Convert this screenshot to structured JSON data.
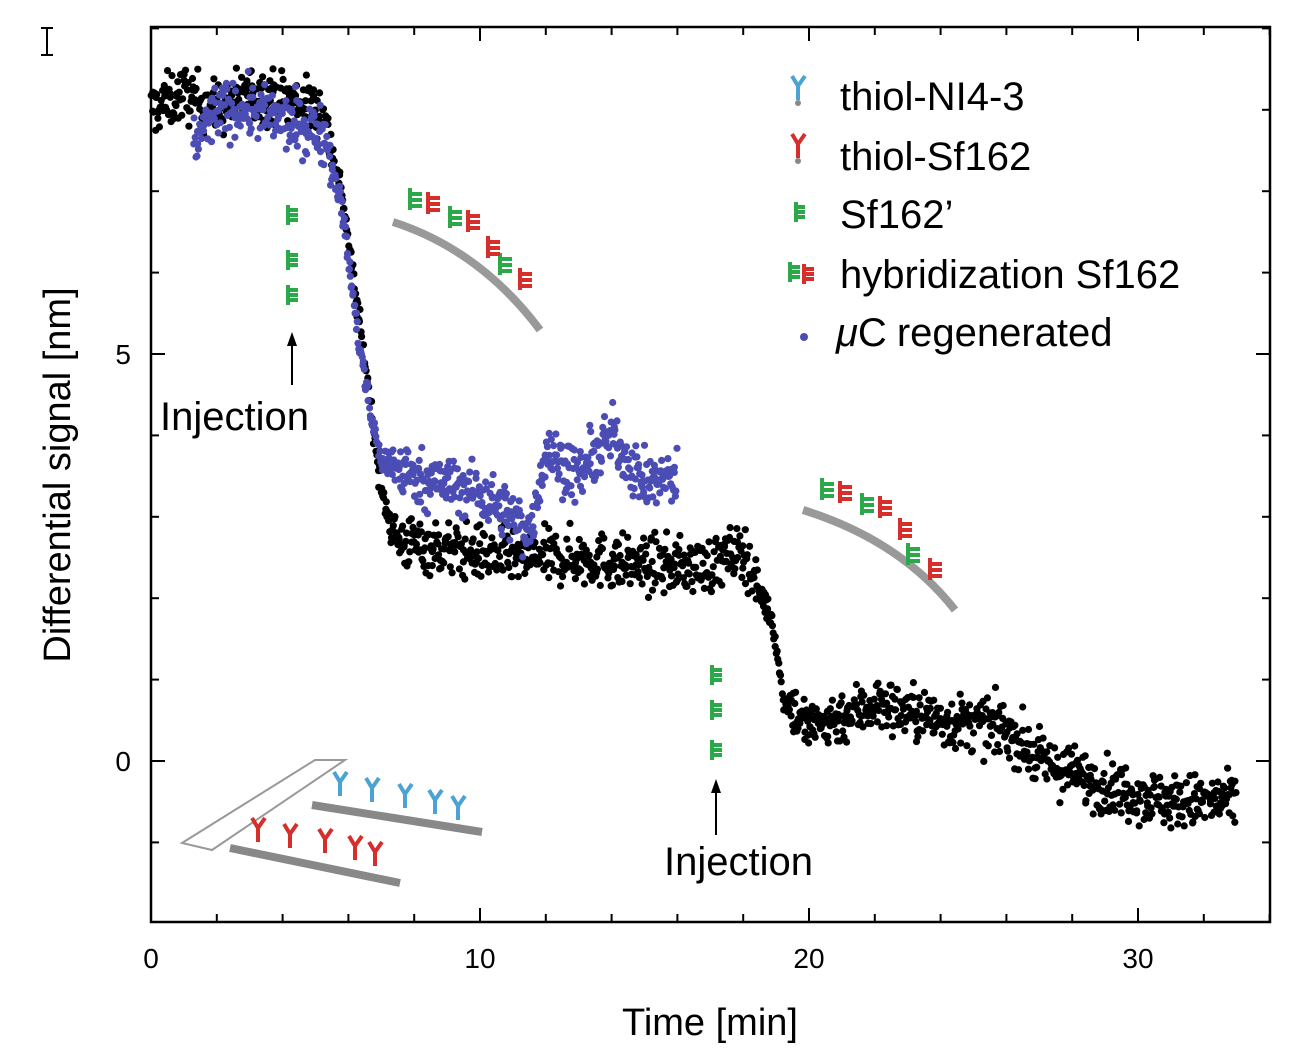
{
  "chart_data": {
    "type": "scatter",
    "xlabel": "Time [min]",
    "ylabel": "Differential signal [nm]",
    "xlim": [
      0,
      34
    ],
    "ylim": [
      -2,
      9
    ],
    "xticks": [
      0,
      10,
      20,
      30
    ],
    "yticks": [
      0,
      5
    ],
    "x_minor_step": 2,
    "y_minor_step": 1,
    "series": [
      {
        "name": "thiol-Sf162",
        "color": "#000000",
        "profile": [
          {
            "x": 0.0,
            "y": 8.0
          },
          {
            "x": 1.0,
            "y": 8.2
          },
          {
            "x": 2.0,
            "y": 8.0
          },
          {
            "x": 3.0,
            "y": 8.2
          },
          {
            "x": 4.5,
            "y": 8.1
          },
          {
            "x": 5.2,
            "y": 8.0
          },
          {
            "x": 5.8,
            "y": 7.0
          },
          {
            "x": 6.3,
            "y": 5.5
          },
          {
            "x": 6.7,
            "y": 4.3
          },
          {
            "x": 7.0,
            "y": 3.3
          },
          {
            "x": 7.5,
            "y": 2.7
          },
          {
            "x": 9.0,
            "y": 2.6
          },
          {
            "x": 11.0,
            "y": 2.5
          },
          {
            "x": 13.0,
            "y": 2.5
          },
          {
            "x": 15.0,
            "y": 2.4
          },
          {
            "x": 17.0,
            "y": 2.4
          },
          {
            "x": 18.0,
            "y": 2.6
          },
          {
            "x": 18.5,
            "y": 2.1
          },
          {
            "x": 18.9,
            "y": 1.7
          },
          {
            "x": 19.2,
            "y": 0.8
          },
          {
            "x": 20.0,
            "y": 0.4
          },
          {
            "x": 22.0,
            "y": 0.7
          },
          {
            "x": 24.0,
            "y": 0.5
          },
          {
            "x": 26.0,
            "y": 0.4
          },
          {
            "x": 27.0,
            "y": 0.0
          },
          {
            "x": 29.0,
            "y": -0.3
          },
          {
            "x": 31.0,
            "y": -0.5
          },
          {
            "x": 33.0,
            "y": -0.5
          }
        ]
      },
      {
        "name": "μC regenerated",
        "color": "#4b4db5",
        "profile": [
          {
            "x": 1.3,
            "y": 7.6
          },
          {
            "x": 2.0,
            "y": 8.0
          },
          {
            "x": 3.0,
            "y": 8.0
          },
          {
            "x": 4.5,
            "y": 7.8
          },
          {
            "x": 5.3,
            "y": 7.7
          },
          {
            "x": 5.8,
            "y": 6.8
          },
          {
            "x": 6.3,
            "y": 5.2
          },
          {
            "x": 6.7,
            "y": 4.2
          },
          {
            "x": 7.0,
            "y": 3.7
          },
          {
            "x": 8.0,
            "y": 3.5
          },
          {
            "x": 10.0,
            "y": 3.3
          },
          {
            "x": 11.0,
            "y": 3.0
          },
          {
            "x": 11.5,
            "y": 2.8
          },
          {
            "x": 12.0,
            "y": 3.8
          },
          {
            "x": 13.0,
            "y": 3.5
          },
          {
            "x": 14.0,
            "y": 4.0
          },
          {
            "x": 15.0,
            "y": 3.4
          },
          {
            "x": 16.0,
            "y": 3.5
          }
        ]
      }
    ],
    "legend": {
      "placement": "top-right",
      "entries": [
        {
          "label": "thiol-NI4-3",
          "icon": "receptor-blue-icon"
        },
        {
          "label": "thiol-Sf162",
          "icon": "receptor-red-icon"
        },
        {
          "label": "Sf162’",
          "icon": "strand-green-icon"
        },
        {
          "label": "hybridization Sf162",
          "icon": "hybrid-green-red-icon"
        },
        {
          "label": "regenerated",
          "prefix": "μ",
          "mid": "C",
          "icon": "blue-dot-icon"
        }
      ]
    },
    "annotations": [
      {
        "text": "Injection",
        "x": 4.3
      },
      {
        "text": "Injection",
        "x": 17.2
      }
    ]
  }
}
